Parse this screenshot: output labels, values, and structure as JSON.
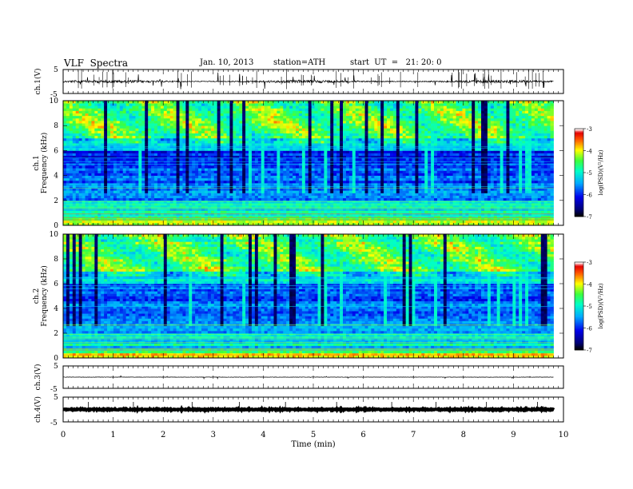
{
  "header": {
    "title": "VLF  Spectra",
    "date": "Jan. 10, 2013",
    "station": "station=ATH",
    "start": "start  UT  =   21: 20: 0"
  },
  "chart_data": [
    {
      "type": "line",
      "panel": "ch1",
      "ylabel": "ch.1(V)",
      "ylim": [
        -5,
        5
      ],
      "yticks": [
        "5",
        "-5"
      ],
      "xlim": [
        0,
        10
      ],
      "description_level_V": 0
    },
    {
      "type": "heatmap",
      "panel": "spec1",
      "ylabel_lines": [
        "ch.1",
        "Frequency  (kHz)"
      ],
      "ylim": [
        0,
        10
      ],
      "yticks": [
        "0",
        "2",
        "4",
        "6",
        "8",
        "10"
      ],
      "xlim": [
        0,
        10
      ],
      "x_data_end_min": 9.8,
      "colorbar": {
        "label": "log(PSD)(V²/Hz)",
        "range": [
          -7,
          -3
        ],
        "ticks": [
          "-3",
          "-4",
          "-5",
          "-6",
          "-7"
        ]
      }
    },
    {
      "type": "heatmap",
      "panel": "spec2",
      "ylabel_lines": [
        "ch.2",
        "Frequency  (kHz)"
      ],
      "ylim": [
        0,
        10
      ],
      "yticks": [
        "0",
        "2",
        "4",
        "6",
        "8",
        "10"
      ],
      "xlim": [
        0,
        10
      ],
      "x_data_end_min": 9.8,
      "colorbar": {
        "label": "log(PSD)(V²/Hz)",
        "range": [
          -7,
          -3
        ],
        "ticks": [
          "-3",
          "-4",
          "-5",
          "-6",
          "-7"
        ]
      }
    },
    {
      "type": "line",
      "panel": "ch3",
      "ylabel": "ch.3(V)",
      "ylim": [
        -5,
        5
      ],
      "yticks": [
        "5",
        "-5"
      ],
      "xlim": [
        0,
        10
      ]
    },
    {
      "type": "line",
      "panel": "ch4",
      "ylabel": "ch.4(V)",
      "ylim": [
        -5,
        5
      ],
      "yticks": [
        "5",
        "-5"
      ],
      "xlim": [
        0,
        10
      ],
      "xlabel": "Time  (min)",
      "xticks": [
        "0",
        "1",
        "2",
        "3",
        "4",
        "5",
        "6",
        "7",
        "8",
        "9",
        "10"
      ]
    }
  ],
  "colors": {
    "axis": "#000000",
    "cmap": [
      "#000000",
      "#0000c8",
      "#00c8ff",
      "#00ff80",
      "#ffff00",
      "#ff6000",
      "#ff0000",
      "#ffffff"
    ]
  }
}
